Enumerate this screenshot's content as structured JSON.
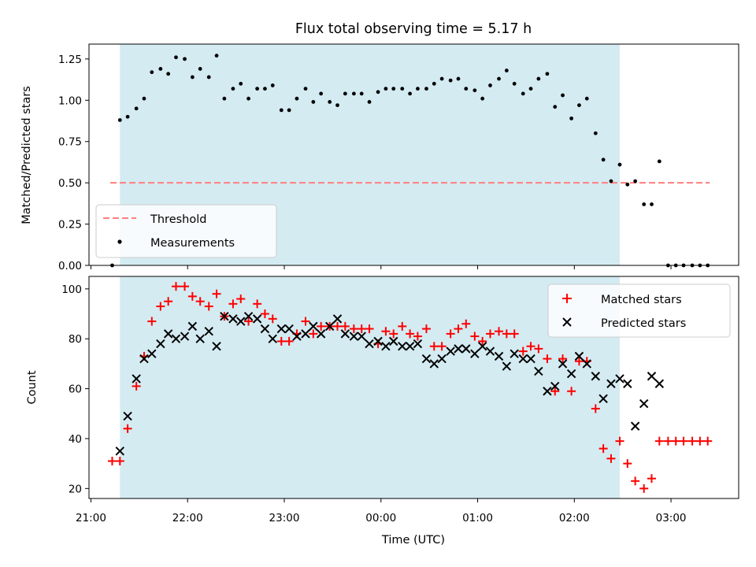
{
  "chart_data": [
    {
      "type": "scatter",
      "title": "Flux total observing time = 5.17 h",
      "xlabel": "",
      "ylabel": "Matched/Predicted stars",
      "ylim": [
        0,
        1.34
      ],
      "yticks": [
        0.0,
        0.25,
        0.5,
        0.75,
        1.0,
        1.25
      ],
      "ytick_labels": [
        "0.00",
        "0.25",
        "0.50",
        "0.75",
        "1.00",
        "1.25"
      ],
      "shaded_span_hours": [
        21.3,
        26.47
      ],
      "threshold": {
        "label": "Threshold",
        "value": 0.5,
        "x_range": [
          21.2,
          27.4
        ],
        "color": "#ff7f7f"
      },
      "measurements": {
        "label": "Measurements",
        "color": "#000000",
        "x": [
          21.22,
          21.3,
          21.38,
          21.47,
          21.55,
          21.63,
          21.72,
          21.8,
          21.88,
          21.97,
          22.05,
          22.13,
          22.22,
          22.3,
          22.38,
          22.47,
          22.55,
          22.63,
          22.72,
          22.8,
          22.88,
          22.97,
          23.05,
          23.13,
          23.22,
          23.3,
          23.38,
          23.47,
          23.55,
          23.63,
          23.72,
          23.8,
          23.88,
          23.97,
          24.05,
          24.13,
          24.22,
          24.3,
          24.38,
          24.47,
          24.55,
          24.63,
          24.72,
          24.8,
          24.88,
          24.97,
          25.05,
          25.13,
          25.22,
          25.3,
          25.38,
          25.47,
          25.55,
          25.63,
          25.72,
          25.8,
          25.88,
          25.97,
          26.05,
          26.13,
          26.22,
          26.3,
          26.38,
          26.47,
          26.55,
          26.63,
          26.72,
          26.8,
          26.88,
          26.97,
          27.05,
          27.13,
          27.22,
          27.3,
          27.38
        ],
        "y": [
          0.0,
          0.88,
          0.9,
          0.95,
          1.01,
          1.17,
          1.19,
          1.16,
          1.26,
          1.25,
          1.14,
          1.19,
          1.14,
          1.27,
          1.01,
          1.07,
          1.1,
          1.01,
          1.07,
          1.07,
          1.09,
          0.94,
          0.94,
          1.01,
          1.07,
          0.99,
          1.04,
          0.99,
          0.97,
          1.04,
          1.04,
          1.04,
          0.99,
          1.05,
          1.07,
          1.07,
          1.07,
          1.04,
          1.07,
          1.07,
          1.1,
          1.13,
          1.12,
          1.13,
          1.07,
          1.06,
          1.01,
          1.09,
          1.13,
          1.18,
          1.1,
          1.04,
          1.07,
          1.13,
          1.16,
          0.96,
          1.03,
          0.89,
          0.97,
          1.01,
          0.8,
          0.64,
          0.51,
          0.61,
          0.49,
          0.51,
          0.37,
          0.37,
          0.63,
          0.0,
          0.0,
          0.0,
          0.0,
          0.0,
          0.0
        ]
      }
    },
    {
      "type": "scatter",
      "title": "",
      "xlabel": "Time (UTC)",
      "ylabel": "Count",
      "ylim": [
        16,
        105
      ],
      "xlim_hours": [
        20.98,
        27.7
      ],
      "yticks": [
        20,
        40,
        60,
        80,
        100
      ],
      "xticks_hours": [
        21,
        22,
        23,
        24,
        25,
        26,
        27
      ],
      "xtick_labels": [
        "21:00",
        "22:00",
        "23:00",
        "00:00",
        "01:00",
        "02:00",
        "03:00"
      ],
      "shaded_span_hours": [
        21.3,
        26.47
      ],
      "series": [
        {
          "name": "Matched stars",
          "marker": "+",
          "color": "#ff0000",
          "x": [
            21.22,
            21.3,
            21.38,
            21.47,
            21.55,
            21.63,
            21.72,
            21.8,
            21.88,
            21.97,
            22.05,
            22.13,
            22.22,
            22.3,
            22.38,
            22.47,
            22.55,
            22.63,
            22.72,
            22.8,
            22.88,
            22.97,
            23.05,
            23.13,
            23.22,
            23.3,
            23.38,
            23.47,
            23.55,
            23.63,
            23.72,
            23.8,
            23.88,
            23.97,
            24.05,
            24.13,
            24.22,
            24.3,
            24.38,
            24.47,
            24.55,
            24.63,
            24.72,
            24.8,
            24.88,
            24.97,
            25.05,
            25.13,
            25.22,
            25.3,
            25.38,
            25.47,
            25.55,
            25.63,
            25.72,
            25.8,
            25.88,
            25.97,
            26.05,
            26.13,
            26.22,
            26.3,
            26.38,
            26.47,
            26.55,
            26.63,
            26.72,
            26.8,
            26.88,
            26.97,
            27.05,
            27.13,
            27.22,
            27.3,
            27.38
          ],
          "y": [
            31,
            31,
            44,
            61,
            73,
            87,
            93,
            95,
            101,
            101,
            97,
            95,
            93,
            98,
            89,
            94,
            96,
            87,
            94,
            90,
            88,
            79,
            79,
            82,
            87,
            82,
            85,
            85,
            85,
            85,
            84,
            84,
            84,
            78,
            83,
            82,
            85,
            82,
            81,
            84,
            77,
            77,
            82,
            84,
            86,
            81,
            79,
            82,
            83,
            82,
            82,
            75,
            77,
            76,
            72,
            59,
            72,
            59,
            71,
            71,
            52,
            36,
            32,
            39,
            30,
            23,
            20,
            24,
            39,
            39,
            39,
            39,
            39,
            39,
            39
          ]
        },
        {
          "name": "Predicted stars",
          "marker": "x",
          "color": "#000000",
          "x": [
            21.3,
            21.38,
            21.47,
            21.55,
            21.63,
            21.72,
            21.8,
            21.88,
            21.97,
            22.05,
            22.13,
            22.22,
            22.3,
            22.38,
            22.47,
            22.55,
            22.63,
            22.72,
            22.8,
            22.88,
            22.97,
            23.05,
            23.13,
            23.22,
            23.3,
            23.38,
            23.47,
            23.55,
            23.63,
            23.72,
            23.8,
            23.88,
            23.97,
            24.05,
            24.13,
            24.22,
            24.3,
            24.38,
            24.47,
            24.55,
            24.63,
            24.72,
            24.8,
            24.88,
            24.97,
            25.05,
            25.13,
            25.22,
            25.3,
            25.38,
            25.47,
            25.55,
            25.63,
            25.72,
            25.8,
            25.88,
            25.97,
            26.05,
            26.13,
            26.22,
            26.3,
            26.38,
            26.47,
            26.55,
            26.63,
            26.72,
            26.8,
            26.88
          ],
          "y": [
            35,
            49,
            64,
            72,
            74,
            78,
            82,
            80,
            81,
            85,
            80,
            83,
            77,
            89,
            88,
            87,
            89,
            88,
            84,
            80,
            84,
            84,
            81,
            82,
            85,
            82,
            85,
            88,
            82,
            81,
            81,
            78,
            79,
            77,
            79,
            77,
            77,
            78,
            72,
            70,
            72,
            75,
            76,
            76,
            74,
            77,
            75,
            73,
            69,
            74,
            72,
            72,
            67,
            59,
            61,
            70,
            66,
            73,
            70,
            65,
            56,
            62,
            64,
            62,
            45,
            54,
            65,
            62
          ]
        }
      ]
    }
  ]
}
